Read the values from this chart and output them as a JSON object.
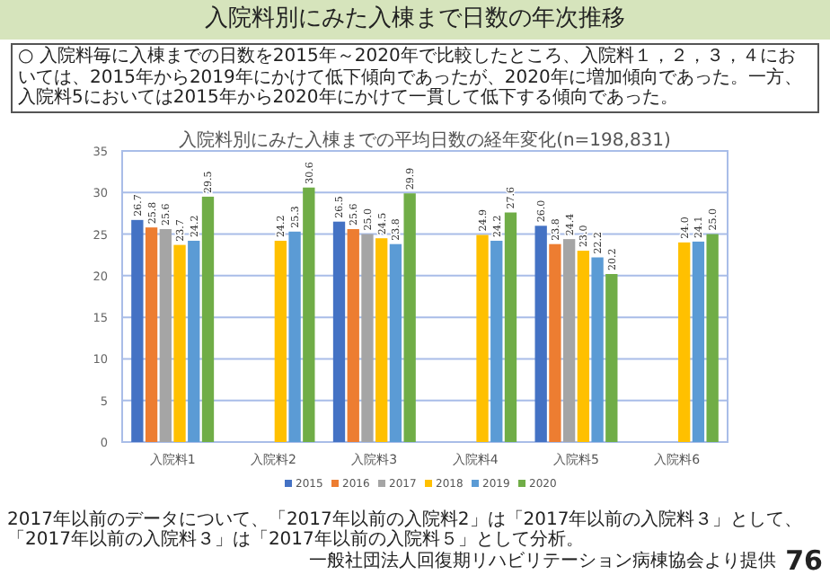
{
  "chart_data": {
    "type": "bar",
    "title": "入院料別にみた入棟まで日数の年次推移",
    "subtitle": "入院料別にみた入棟までの平均日数の経年変化(n=198,831)",
    "categories": [
      "入院料1",
      "入院料2",
      "入院料3",
      "入院料4",
      "入院料5",
      "入院料6"
    ],
    "series": [
      {
        "name": "2015",
        "color": "#4472c4",
        "values": [
          26.7,
          null,
          26.5,
          null,
          26.0,
          null
        ],
        "value_labels": [
          "26.7",
          null,
          "26.5",
          null,
          "26.0",
          null
        ]
      },
      {
        "name": "2016",
        "color": "#ed7d31",
        "values": [
          25.8,
          null,
          25.6,
          null,
          23.8,
          null
        ],
        "value_labels": [
          "25.8",
          null,
          "25.6",
          null,
          "23.8",
          null
        ]
      },
      {
        "name": "2017",
        "color": "#a5a5a5",
        "values": [
          25.6,
          null,
          25.0,
          null,
          24.4,
          null
        ],
        "value_labels": [
          "25.6",
          null,
          "25.0",
          null,
          "24.4",
          null
        ]
      },
      {
        "name": "2018",
        "color": "#ffc000",
        "values": [
          23.7,
          24.2,
          24.5,
          24.9,
          23.0,
          24.0
        ],
        "value_labels": [
          "23.7",
          "24.2",
          "24.5",
          "24.9",
          "23.0",
          "24.0"
        ]
      },
      {
        "name": "2019",
        "color": "#5b9bd5",
        "values": [
          24.2,
          25.3,
          23.8,
          24.2,
          22.2,
          24.1
        ],
        "value_labels": [
          "24.2",
          "25.3",
          "23.8",
          "24.2",
          "22.2",
          "24.1"
        ]
      },
      {
        "name": "2020",
        "color": "#70ad47",
        "values": [
          29.5,
          30.6,
          29.9,
          27.6,
          20.2,
          25.0
        ],
        "value_labels": [
          "29.5",
          "30.6",
          "29.9",
          "27.6",
          "20.2",
          "25.0"
        ]
      }
    ],
    "ylim": [
      0,
      35
    ],
    "yticks": [
      0,
      5,
      10,
      15,
      20,
      25,
      30,
      35
    ],
    "grid": "y",
    "legend": "bottom",
    "annotations": [
      "○ 入院料毎に入棟までの日数を2015年～2020年で比較したところ、入院料１，２，３，４においては、2015年から2019年にかけて低下傾向であったが、2020年に増加傾向であった。一方、入院料5においては2015年から2020年にかけて一貫して低下する傾向であった。",
      "2017年以前のデータについて、「2017年以前の入院料2」は「2017年以前の入院料３」として、「2017年以前の入院料３」は「2017年以前の入院料５」として分析。",
      "一般社団法人回復期リハビリテーション病棟協会より提供",
      "76"
    ]
  }
}
